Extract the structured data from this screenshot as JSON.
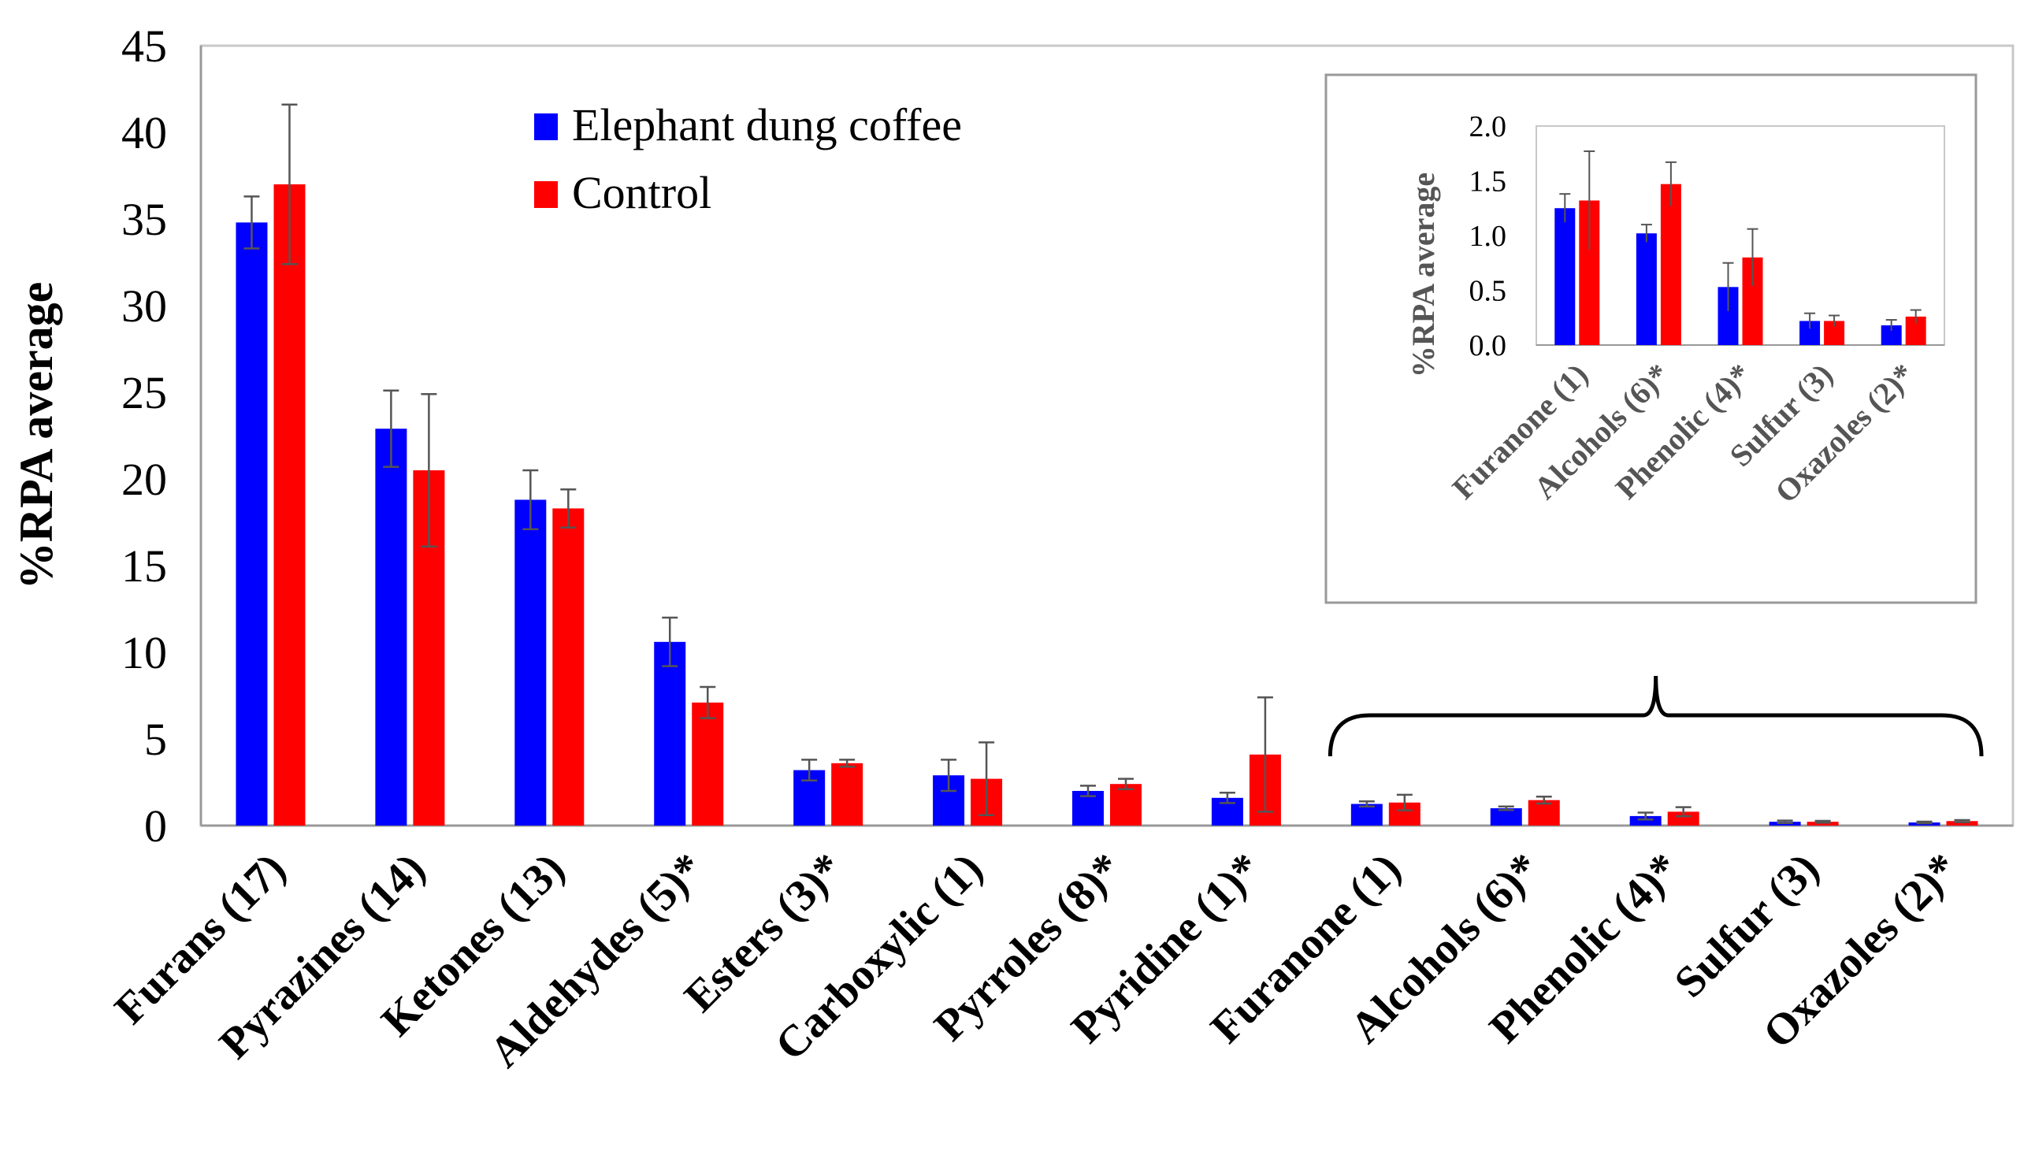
{
  "chart_data": [
    {
      "type": "bar",
      "title": "",
      "xlabel": "",
      "ylabel": "%RPA average",
      "ylim": [
        0,
        45
      ],
      "yticks": [
        0,
        5,
        10,
        15,
        20,
        25,
        30,
        35,
        40,
        45
      ],
      "categories": [
        "Furans (17)",
        "Pyrazines (14)",
        "Ketones (13)",
        "Aldehydes (5)*",
        "Esters (3)*",
        "Carboxylic (1)",
        "Pyrroles (8)*",
        "Pyridine (1)*",
        "Furanone (1)",
        "Alcohols (6)*",
        "Phenolic (4)*",
        "Sulfur (3)",
        "Oxazoles (2)*"
      ],
      "series": [
        {
          "name": "Elephant dung coffee",
          "color": "#0000ff",
          "values": [
            34.8,
            22.9,
            18.8,
            10.6,
            3.2,
            2.9,
            2.0,
            1.6,
            1.25,
            1.0,
            0.55,
            0.22,
            0.18
          ],
          "errors": [
            1.5,
            2.2,
            1.7,
            1.4,
            0.6,
            0.9,
            0.3,
            0.3,
            0.15,
            0.1,
            0.2,
            0.07,
            0.05
          ]
        },
        {
          "name": "Control",
          "color": "#ff0000",
          "values": [
            37.0,
            20.5,
            18.3,
            7.1,
            3.6,
            2.7,
            2.4,
            4.1,
            1.33,
            1.47,
            0.8,
            0.22,
            0.26
          ],
          "errors": [
            4.6,
            4.4,
            1.1,
            0.9,
            0.2,
            2.1,
            0.3,
            3.3,
            0.45,
            0.2,
            0.26,
            0.05,
            0.06
          ]
        }
      ],
      "legend": "top-center"
    },
    {
      "type": "bar",
      "title": "",
      "xlabel": "",
      "ylabel": "%RPA average",
      "ylim": [
        0,
        2.0
      ],
      "yticks": [
        "0.0",
        "0.5",
        "1.0",
        "1.5",
        "2.0"
      ],
      "categories": [
        "Furanone (1)",
        "Alcohols (6)*",
        "Phenolic (4)*",
        "Sulfur (3)",
        "Oxazoles (2)*"
      ],
      "series": [
        {
          "name": "Elephant dung coffee",
          "color": "#0000ff",
          "values": [
            1.25,
            1.02,
            0.53,
            0.22,
            0.18
          ],
          "errors": [
            0.13,
            0.08,
            0.22,
            0.07,
            0.05
          ]
        },
        {
          "name": "Control",
          "color": "#ff0000",
          "values": [
            1.32,
            1.47,
            0.8,
            0.22,
            0.26
          ],
          "errors": [
            0.45,
            0.2,
            0.26,
            0.05,
            0.06
          ]
        }
      ],
      "legend": "none"
    }
  ]
}
